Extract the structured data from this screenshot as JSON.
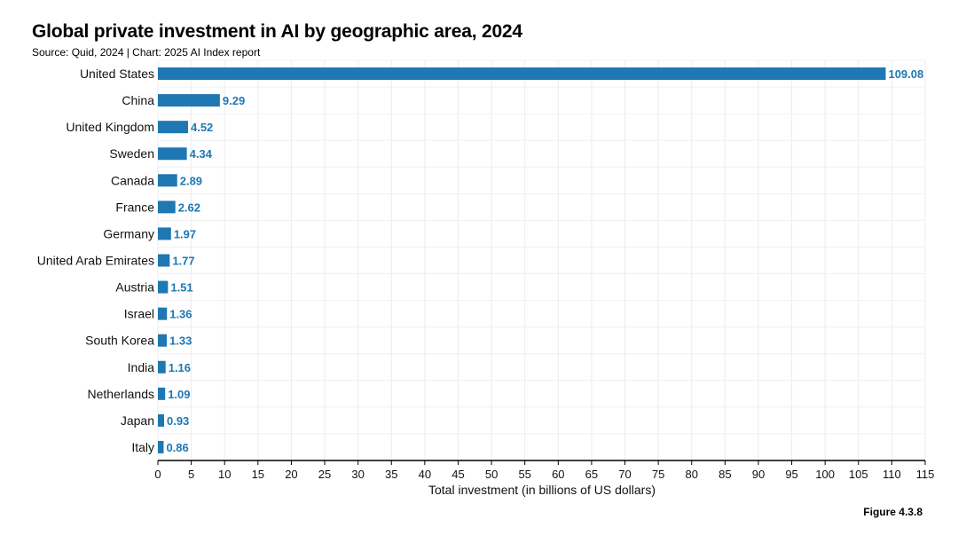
{
  "chart_data": {
    "type": "bar",
    "orientation": "horizontal",
    "title": "Global private investment in AI by geographic area, 2024",
    "subtitle": "Source: Quid, 2024 | Chart: 2025 AI Index report",
    "xlabel": "Total investment (in billions of US dollars)",
    "ylabel": "",
    "xlim": [
      0,
      115
    ],
    "xticks": [
      0,
      5,
      10,
      15,
      20,
      25,
      30,
      35,
      40,
      45,
      50,
      55,
      60,
      65,
      70,
      75,
      80,
      85,
      90,
      95,
      100,
      105,
      110,
      115
    ],
    "grid": true,
    "bar_color": "#1f77b4",
    "label_color": "#1f77b4",
    "categories": [
      "United States",
      "China",
      "United Kingdom",
      "Sweden",
      "Canada",
      "France",
      "Germany",
      "United Arab Emirates",
      "Austria",
      "Israel",
      "South Korea",
      "India",
      "Netherlands",
      "Japan",
      "Italy"
    ],
    "values": [
      109.08,
      9.29,
      4.52,
      4.34,
      2.89,
      2.62,
      1.97,
      1.77,
      1.51,
      1.36,
      1.33,
      1.16,
      1.09,
      0.93,
      0.86
    ],
    "value_labels": [
      "109.08",
      "9.29",
      "4.52",
      "4.34",
      "2.89",
      "2.62",
      "1.97",
      "1.77",
      "1.51",
      "1.36",
      "1.33",
      "1.16",
      "1.09",
      "0.93",
      "0.86"
    ]
  },
  "figure_label": "Figure 4.3.8"
}
